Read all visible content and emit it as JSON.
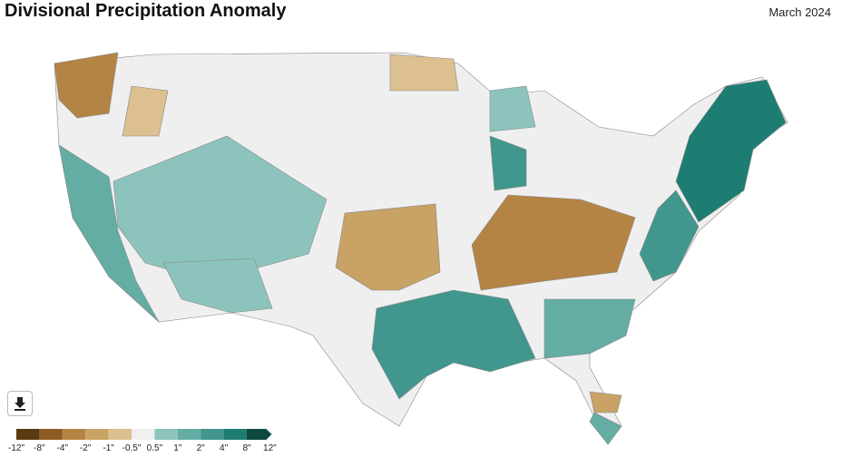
{
  "header": {
    "title": "Divisional Precipitation Anomaly",
    "date": "March 2024"
  },
  "legend": {
    "labels": [
      "-12\"",
      "-8\"",
      "-4\"",
      "-2\"",
      "-1\"",
      "-0.5\"",
      "0.5\"",
      "1\"",
      "2\"",
      "4\"",
      "8\"",
      "12\""
    ],
    "colors": [
      "#5a3a0e",
      "#8e5b22",
      "#b48445",
      "#c9a265",
      "#dcc090",
      "#efefef",
      "#8cc4bd",
      "#63ad a4",
      "#41978d",
      "#1e7d72",
      "#0c4a40"
    ]
  }
}
